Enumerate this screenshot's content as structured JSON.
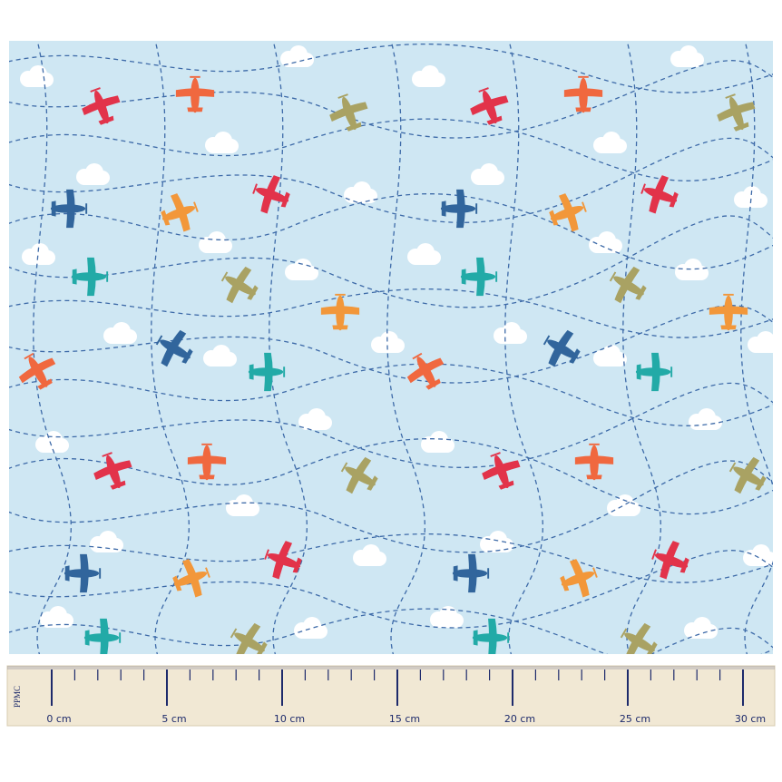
{
  "ruler": {
    "brand": "PPMC",
    "labels": [
      "0 cm",
      "5 cm",
      "10 cm",
      "15 cm",
      "20 cm",
      "25 cm",
      "30 cm"
    ]
  }
}
